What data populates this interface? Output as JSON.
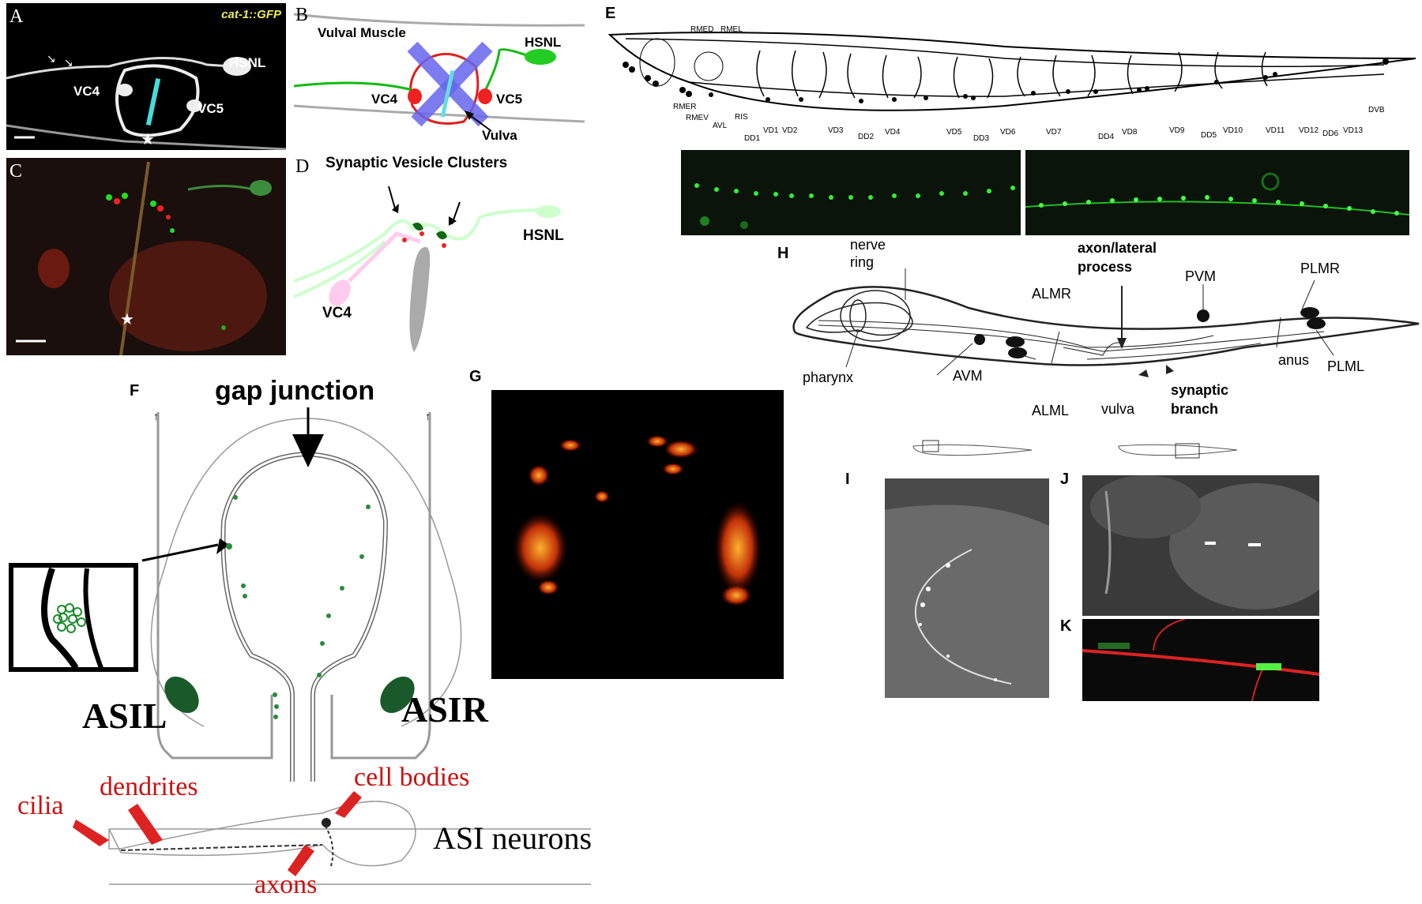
{
  "panelA": {
    "letter": "A",
    "title": "cat-1::GFP",
    "hsnl": "HSNL",
    "vc4": "VC4",
    "vc5": "VC5",
    "star": "★"
  },
  "panelB": {
    "letter": "B",
    "muscle": "Vulval Muscle",
    "hsnl": "HSNL",
    "vc4": "VC4",
    "vc5": "VC5",
    "vulva": "Vulva"
  },
  "panelC": {
    "letter": "C",
    "star": "★"
  },
  "panelD": {
    "letter": "D",
    "title": "Synaptic Vesicle Clusters",
    "hsnl": "HSNL",
    "vc4": "VC4"
  },
  "panelE": {
    "letter": "E",
    "top_labels": [
      "RMED",
      "RMEL"
    ],
    "left_labels": [
      "RMER",
      "RMEV",
      "AVL",
      "RIS"
    ],
    "bottom_labels": [
      "DD1",
      "VD1",
      "VD2",
      "VD3",
      "DD2",
      "VD4",
      "VD5",
      "DD3",
      "VD6",
      "VD7",
      "DD4",
      "VD8",
      "VD9",
      "DD5",
      "VD10",
      "VD11",
      "VD12",
      "DD6",
      "VD13",
      "DVB"
    ]
  },
  "panelF": {
    "letter": "F",
    "gap": "gap junction",
    "asil": "ASIL",
    "asir": "ASIR",
    "cilia": "cilia",
    "dendrites": "dendrites",
    "cell_bodies": "cell bodies",
    "axons": "axons",
    "asi": "ASI neurons"
  },
  "panelG": {
    "letter": "G"
  },
  "panelH": {
    "letter": "H",
    "nerve": "nerve",
    "ring": "ring",
    "axon1": "axon/lateral",
    "axon2": "process",
    "pvm": "PVM",
    "plmr": "PLMR",
    "almr": "ALMR",
    "pharynx": "pharynx",
    "avm": "AVM",
    "anus": "anus",
    "plml": "PLML",
    "alml": "ALML",
    "vulva": "vulva",
    "syn1": "synaptic",
    "syn2": "branch"
  },
  "panelI": {
    "letter": "I"
  },
  "panelJ": {
    "letter": "J"
  },
  "panelK": {
    "letter": "K"
  }
}
